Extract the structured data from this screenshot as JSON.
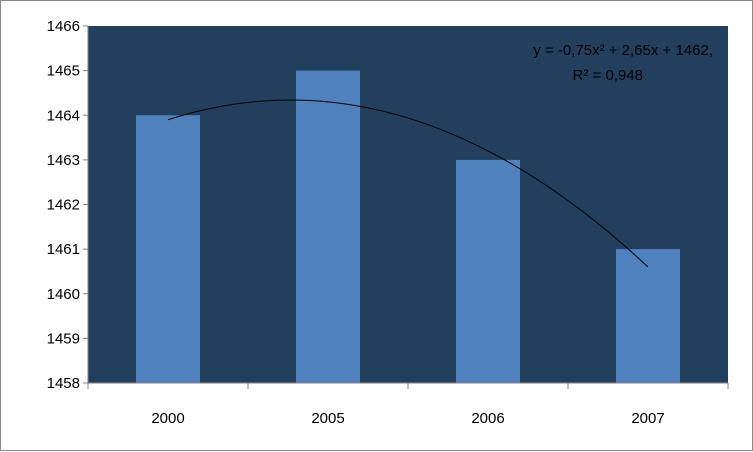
{
  "chart_data": {
    "type": "bar",
    "categories": [
      "2000",
      "2005",
      "2006",
      "2007"
    ],
    "values": [
      1464,
      1465,
      1463,
      1461
    ],
    "title": "",
    "xlabel": "",
    "ylabel": "",
    "ylim": [
      1458,
      1466
    ],
    "yticks": [
      "1458",
      "1459",
      "1460",
      "1461",
      "1462",
      "1463",
      "1464",
      "1465",
      "1466"
    ],
    "grid": false,
    "legend": "none",
    "trendline": {
      "type": "polynomial",
      "order": 2,
      "coefficients": [
        -0.75,
        2.65,
        1462
      ],
      "equation": "y = -0,75x² + 2,65x + 1462,",
      "r_squared": "R² = 0,948"
    },
    "colors": {
      "plot_background": "#233f5e",
      "bar": "#4f81bd",
      "trendline": "#000000",
      "axis": "#808080"
    }
  }
}
